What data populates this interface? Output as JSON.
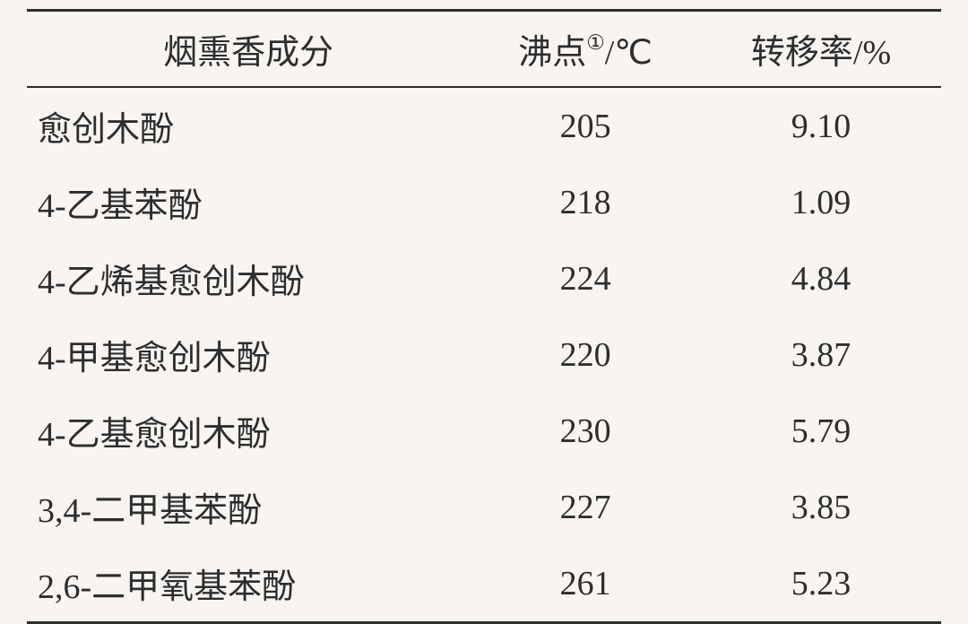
{
  "table": {
    "columns": [
      {
        "label": "烟熏香成分",
        "align": "left"
      },
      {
        "label_pre": "沸点",
        "label_sup": "①",
        "label_post": "/℃",
        "align": "center"
      },
      {
        "label": "转移率/%",
        "align": "center"
      }
    ],
    "rows": [
      {
        "name": "愈创木酚",
        "bp": "205",
        "rate": "9.10"
      },
      {
        "name": "4-乙基苯酚",
        "bp": "218",
        "rate": "1.09"
      },
      {
        "name": "4-乙烯基愈创木酚",
        "bp": "224",
        "rate": "4.84"
      },
      {
        "name": "4-甲基愈创木酚",
        "bp": "220",
        "rate": "3.87"
      },
      {
        "name": "4-乙基愈创木酚",
        "bp": "230",
        "rate": "5.79"
      },
      {
        "name": "3,4-二甲基苯酚",
        "bp": "227",
        "rate": "3.85"
      },
      {
        "name": "2,6-二甲氧基苯酚",
        "bp": "261",
        "rate": "5.23"
      }
    ],
    "styling": {
      "background_color": "#f7f4f1",
      "text_color": "#2d2d2d",
      "border_color": "#2d2d2d",
      "top_border_width": 3,
      "header_bottom_border_width": 2,
      "bottom_border_width": 3,
      "font_size": 38,
      "font_family": "SimSun",
      "cell_padding_v": 15,
      "cell_padding_h": 8
    }
  }
}
